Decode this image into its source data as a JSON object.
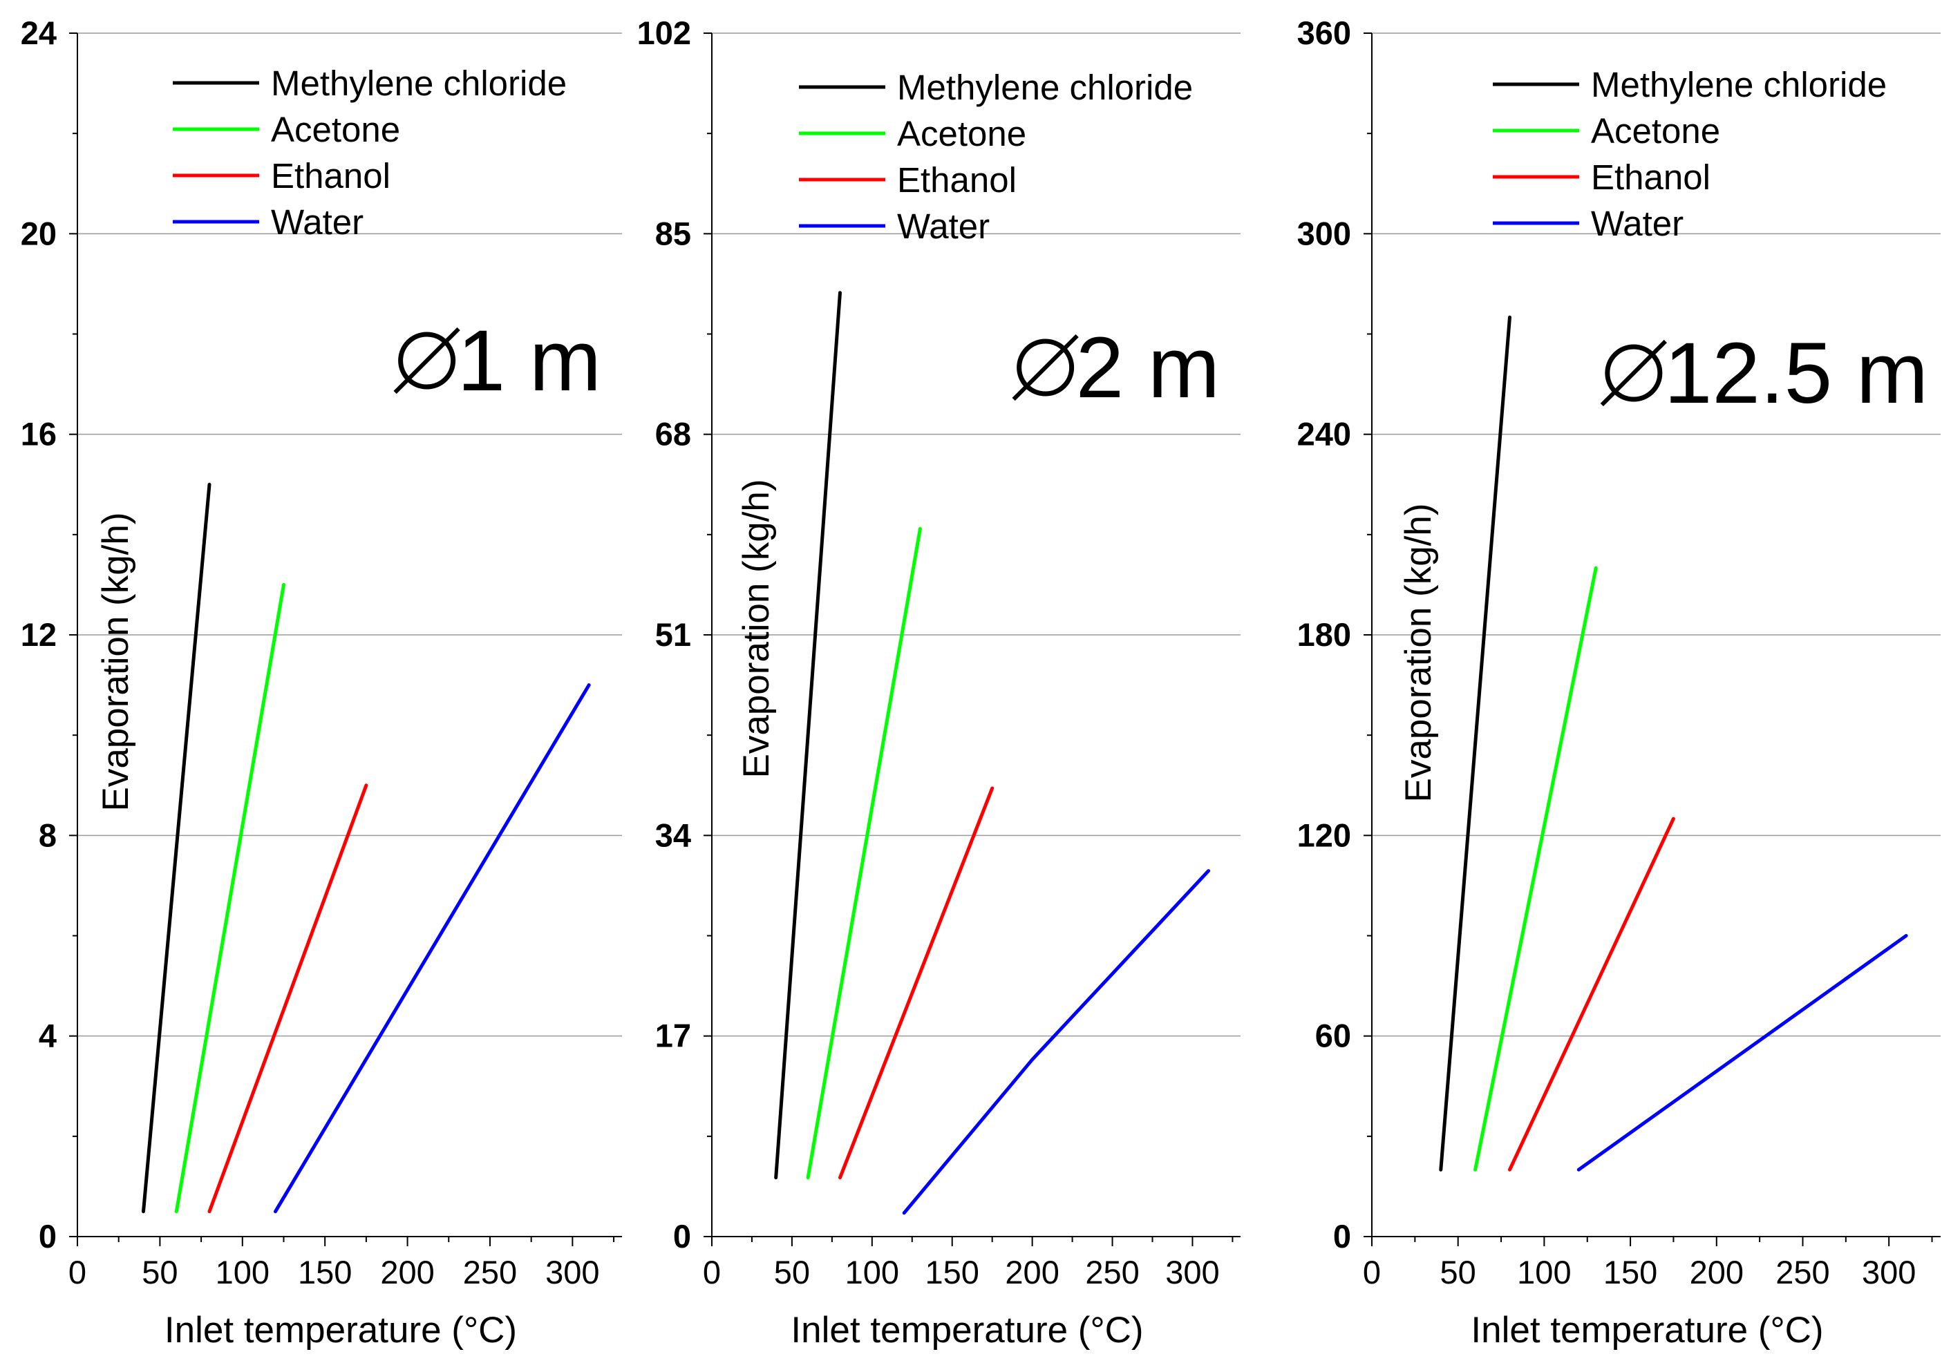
{
  "chart_data": [
    {
      "type": "line",
      "title": "",
      "annotation": "1 m",
      "xlabel": "Inlet temperature (°C)",
      "ylabel": "Evaporation (kg/h)",
      "xlim": [
        0,
        330
      ],
      "ylim": [
        0,
        24
      ],
      "xticks": [
        "0",
        "50",
        "100",
        "150",
        "200",
        "250",
        "300"
      ],
      "yticks": [
        "0",
        "4",
        "8",
        "12",
        "16",
        "20",
        "24"
      ],
      "grid": true,
      "legend": "top-right",
      "series": [
        {
          "name": "Methylene chloride",
          "color": "#000000",
          "x": [
            40,
            80
          ],
          "y": [
            0.5,
            15.0
          ]
        },
        {
          "name": "Acetone",
          "color": "#00ff00",
          "x": [
            60,
            125
          ],
          "y": [
            0.5,
            13.0
          ]
        },
        {
          "name": "Ethanol",
          "color": "#ff0000",
          "x": [
            80,
            175
          ],
          "y": [
            0.5,
            9.0
          ]
        },
        {
          "name": "Water",
          "color": "#0000ff",
          "x": [
            120,
            310
          ],
          "y": [
            0.5,
            11.0
          ]
        }
      ]
    },
    {
      "type": "line",
      "title": "",
      "annotation": "2 m",
      "xlabel": "Inlet temperature (°C)",
      "ylabel": "Evaporation (kg/h)",
      "xlim": [
        0,
        330
      ],
      "ylim": [
        0,
        102
      ],
      "xticks": [
        "0",
        "50",
        "100",
        "150",
        "200",
        "250",
        "300"
      ],
      "yticks": [
        "0",
        "17",
        "34",
        "51",
        "68",
        "85",
        "102"
      ],
      "grid": true,
      "legend": "top-right",
      "series": [
        {
          "name": "Methylene chloride",
          "color": "#000000",
          "x": [
            40,
            80
          ],
          "y": [
            5,
            80
          ]
        },
        {
          "name": "Acetone",
          "color": "#00ff00",
          "x": [
            60,
            130
          ],
          "y": [
            5,
            60
          ]
        },
        {
          "name": "Ethanol",
          "color": "#ff0000",
          "x": [
            80,
            175
          ],
          "y": [
            5,
            38
          ]
        },
        {
          "name": "Water",
          "color": "#0000ff",
          "x": [
            120,
            200,
            310
          ],
          "y": [
            2,
            15,
            31
          ]
        }
      ]
    },
    {
      "type": "line",
      "title": "",
      "annotation": "12.5 m",
      "xlabel": "Inlet temperature (°C)",
      "ylabel": "Evaporation (kg/h)",
      "xlim": [
        0,
        330
      ],
      "ylim": [
        0,
        360
      ],
      "xticks": [
        "0",
        "50",
        "100",
        "150",
        "200",
        "250",
        "300"
      ],
      "yticks": [
        "0",
        "60",
        "120",
        "180",
        "240",
        "300",
        "360"
      ],
      "grid": true,
      "legend": "top-right",
      "series": [
        {
          "name": "Methylene chloride",
          "color": "#000000",
          "x": [
            40,
            80
          ],
          "y": [
            20,
            275
          ]
        },
        {
          "name": "Acetone",
          "color": "#00ff00",
          "x": [
            60,
            130
          ],
          "y": [
            20,
            200
          ]
        },
        {
          "name": "Ethanol",
          "color": "#ff0000",
          "x": [
            80,
            175
          ],
          "y": [
            20,
            125
          ]
        },
        {
          "name": "Water",
          "color": "#0000ff",
          "x": [
            120,
            310
          ],
          "y": [
            20,
            90
          ]
        }
      ]
    }
  ]
}
